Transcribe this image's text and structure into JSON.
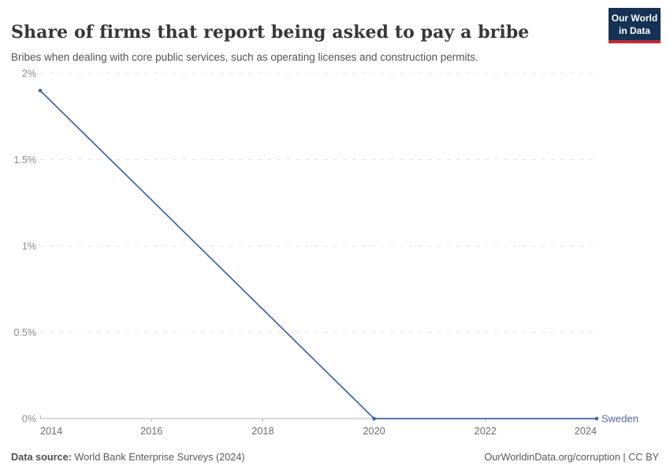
{
  "header": {
    "title": "Share of firms that report being asked to pay a bribe",
    "subtitle": "Bribes when dealing with core public services, such as operating licenses and construction permits.",
    "logo": {
      "line1": "Our World",
      "line2": "in Data"
    }
  },
  "colors": {
    "title_text": "#383838",
    "subtitle_text": "#535353",
    "line": "#3d64a8",
    "entity_label": "#4d6bad",
    "grid": "#e4e4e4",
    "axis": "#b6b6b6",
    "y_tick_text": "#8c8c8c",
    "x_tick_text": "#6d6d6d",
    "logo_bg": "#153254",
    "logo_red": "#c22b38"
  },
  "chart_data": {
    "type": "line",
    "title": "Share of firms that report being asked to pay a bribe",
    "xlabel": "",
    "ylabel": "",
    "xlim": [
      2014,
      2024
    ],
    "ylim": [
      0,
      2
    ],
    "grid": "horizontal-dashed",
    "legend_position": "line-end-label",
    "x_ticks": [
      {
        "value": 2014,
        "label": "2014"
      },
      {
        "value": 2016,
        "label": "2016"
      },
      {
        "value": 2018,
        "label": "2018"
      },
      {
        "value": 2020,
        "label": "2020"
      },
      {
        "value": 2022,
        "label": "2022"
      },
      {
        "value": 2024,
        "label": "2024"
      }
    ],
    "y_ticks": [
      {
        "value": 0,
        "label": "0%"
      },
      {
        "value": 0.5,
        "label": "0.5%"
      },
      {
        "value": 1,
        "label": "1%"
      },
      {
        "value": 1.5,
        "label": "1.5%"
      },
      {
        "value": 2,
        "label": "2%"
      }
    ],
    "series": [
      {
        "name": "Sweden",
        "unit": "%",
        "points": [
          {
            "x": 2014,
            "y": 1.9
          },
          {
            "x": 2020,
            "y": 0
          },
          {
            "x": 2024,
            "y": 0
          }
        ]
      }
    ]
  },
  "footer": {
    "source_label": "Data source:",
    "source_value": " World Bank Enterprise Surveys (2024)",
    "right_text": "OurWorldinData.org/corruption | CC BY"
  }
}
